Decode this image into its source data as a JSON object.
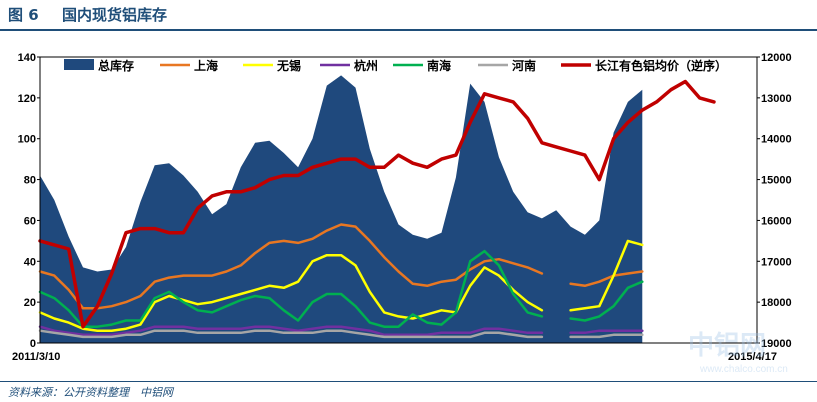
{
  "figure": {
    "number": "图 6",
    "title": "国内现货铝库存",
    "source": "资料来源：公开资料整理　中铝网"
  },
  "watermark": {
    "logo_text": "中铝网",
    "url_text": "www.chalco.com.cn"
  },
  "chart_data": {
    "type": "area",
    "x_start_label": "2011/3/10",
    "x_end_label": "2015/4/17",
    "left_axis": {
      "ylim": [
        0,
        140
      ],
      "ticks": [
        0,
        20,
        40,
        60,
        80,
        100,
        120,
        140
      ]
    },
    "right_axis": {
      "ylim": [
        19000,
        12000
      ],
      "reversed": true,
      "ticks": [
        12000,
        13000,
        14000,
        15000,
        16000,
        17000,
        18000,
        19000
      ]
    },
    "legend_position": "top",
    "grid": false,
    "x_index": [
      0,
      4,
      8,
      12,
      16,
      20,
      24,
      28,
      32,
      36,
      40,
      44,
      48,
      52,
      56,
      60,
      64,
      68,
      72,
      76,
      80,
      84,
      88,
      92,
      96,
      100,
      104,
      108,
      112,
      116,
      120,
      124,
      128,
      132,
      136,
      140,
      144,
      148,
      152,
      156,
      160,
      164,
      168,
      172,
      176,
      180,
      184,
      188,
      192,
      196,
      200
    ],
    "series": [
      {
        "name": "总库存",
        "kind": "area",
        "axis": "left",
        "color": "#1f497d",
        "values": [
          82,
          70,
          52,
          37,
          35,
          36,
          47,
          69,
          87,
          88,
          82,
          74,
          63,
          68,
          86,
          98,
          99,
          93,
          86,
          100,
          126,
          131,
          125,
          95,
          74,
          58,
          53,
          51,
          54,
          81,
          127,
          118,
          91,
          74,
          64,
          61,
          65,
          57,
          53,
          60,
          103,
          118,
          124,
          null,
          null,
          null,
          null,
          null,
          null,
          null,
          null
        ]
      },
      {
        "name": "上海",
        "kind": "line",
        "axis": "left",
        "color": "#e87722",
        "values": [
          35,
          33,
          26,
          17,
          17,
          18,
          20,
          23,
          30,
          32,
          33,
          33,
          33,
          35,
          38,
          44,
          49,
          50,
          49,
          51,
          55,
          58,
          57,
          50,
          42,
          35,
          29,
          28,
          30,
          31,
          36,
          40,
          41,
          39,
          37,
          34,
          null,
          29,
          28,
          30,
          33,
          34,
          35,
          null,
          null,
          null,
          null,
          null,
          null,
          null,
          null
        ]
      },
      {
        "name": "无锡",
        "kind": "line",
        "axis": "left",
        "color": "#ffff00",
        "values": [
          15,
          12,
          10,
          7,
          6,
          6,
          7,
          9,
          20,
          23,
          21,
          19,
          20,
          22,
          24,
          26,
          28,
          27,
          30,
          40,
          43,
          43,
          38,
          25,
          15,
          13,
          12,
          14,
          16,
          15,
          28,
          37,
          33,
          26,
          20,
          16,
          null,
          16,
          17,
          18,
          33,
          50,
          48,
          null,
          null,
          null,
          null,
          null,
          null,
          null,
          null
        ]
      },
      {
        "name": "杭州",
        "kind": "line",
        "axis": "left",
        "color": "#7030a0",
        "values": [
          8,
          6,
          5,
          4,
          4,
          4,
          5,
          6,
          8,
          8,
          8,
          7,
          7,
          7,
          7,
          8,
          8,
          7,
          6,
          7,
          8,
          8,
          7,
          6,
          4,
          4,
          4,
          4,
          5,
          5,
          5,
          7,
          7,
          6,
          5,
          5,
          null,
          5,
          5,
          6,
          6,
          6,
          6,
          null,
          null,
          null,
          null,
          null,
          null,
          null,
          null
        ]
      },
      {
        "name": "南海",
        "kind": "line",
        "axis": "left",
        "color": "#00b050",
        "values": [
          25,
          22,
          16,
          8,
          8,
          9,
          11,
          11,
          22,
          25,
          20,
          16,
          15,
          18,
          21,
          23,
          22,
          16,
          11,
          20,
          24,
          24,
          18,
          10,
          8,
          8,
          14,
          10,
          9,
          15,
          40,
          45,
          38,
          24,
          15,
          13,
          null,
          12,
          11,
          13,
          18,
          27,
          30,
          null,
          null,
          null,
          null,
          null,
          null,
          null,
          null
        ]
      },
      {
        "name": "河南",
        "kind": "line",
        "axis": "left",
        "color": "#a6a6a6",
        "values": [
          6,
          5,
          4,
          3,
          3,
          3,
          4,
          4,
          6,
          6,
          6,
          5,
          5,
          5,
          5,
          6,
          6,
          5,
          5,
          5,
          6,
          6,
          5,
          4,
          3,
          3,
          3,
          3,
          3,
          3,
          3,
          5,
          5,
          4,
          3,
          3,
          null,
          3,
          3,
          3,
          4,
          4,
          4,
          null,
          null,
          null,
          null,
          null,
          null,
          null,
          null
        ]
      },
      {
        "name": "长江有色铝均价（逆序）",
        "kind": "line",
        "axis": "right",
        "color": "#c00000",
        "values": [
          16500,
          16600,
          16700,
          18600,
          18100,
          17300,
          16300,
          16200,
          16200,
          16300,
          16300,
          15700,
          15400,
          15300,
          15300,
          15200,
          15000,
          14900,
          14900,
          14700,
          14600,
          14500,
          14500,
          14700,
          14700,
          14400,
          14600,
          14700,
          14500,
          14400,
          13600,
          12900,
          13000,
          13100,
          13500,
          14100,
          14200,
          14300,
          14400,
          15000,
          14000,
          13600,
          13300,
          13100,
          12800,
          12600,
          13000,
          13100,
          null,
          null,
          null
        ]
      }
    ]
  }
}
